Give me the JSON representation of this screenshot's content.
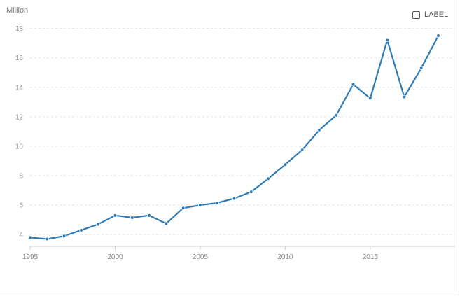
{
  "unit_label": "Million",
  "legend_toggle": {
    "label": "LABEL",
    "checked": false
  },
  "colors": {
    "line": "#2e7bb5",
    "grid": "#e2e2e2",
    "axis": "#cccccc",
    "text": "#8a8a8a"
  },
  "chart_data": {
    "type": "line",
    "title": "",
    "xlabel": "",
    "ylabel": "Million",
    "xlim": [
      1995,
      2019
    ],
    "ylim": [
      3.2,
      18.6
    ],
    "x_ticks": [
      1995,
      2000,
      2005,
      2010,
      2015
    ],
    "y_ticks": [
      4,
      6,
      8,
      10,
      12,
      14,
      16,
      18
    ],
    "grid": true,
    "series": [
      {
        "x": [
          1995,
          1996,
          1997,
          1998,
          1999,
          2000,
          2001,
          2002,
          2003,
          2004,
          2005,
          2006,
          2007,
          2008,
          2009,
          2010,
          2011,
          2012,
          2013,
          2014,
          2015,
          2016,
          2017,
          2018,
          2019
        ],
        "values": [
          3.8,
          3.7,
          3.9,
          4.3,
          4.7,
          5.3,
          5.15,
          5.3,
          4.75,
          5.8,
          6.0,
          6.15,
          6.45,
          6.9,
          7.8,
          8.75,
          9.75,
          11.1,
          12.1,
          14.2,
          13.25,
          17.2,
          13.35,
          15.3,
          17.5
        ]
      }
    ]
  }
}
